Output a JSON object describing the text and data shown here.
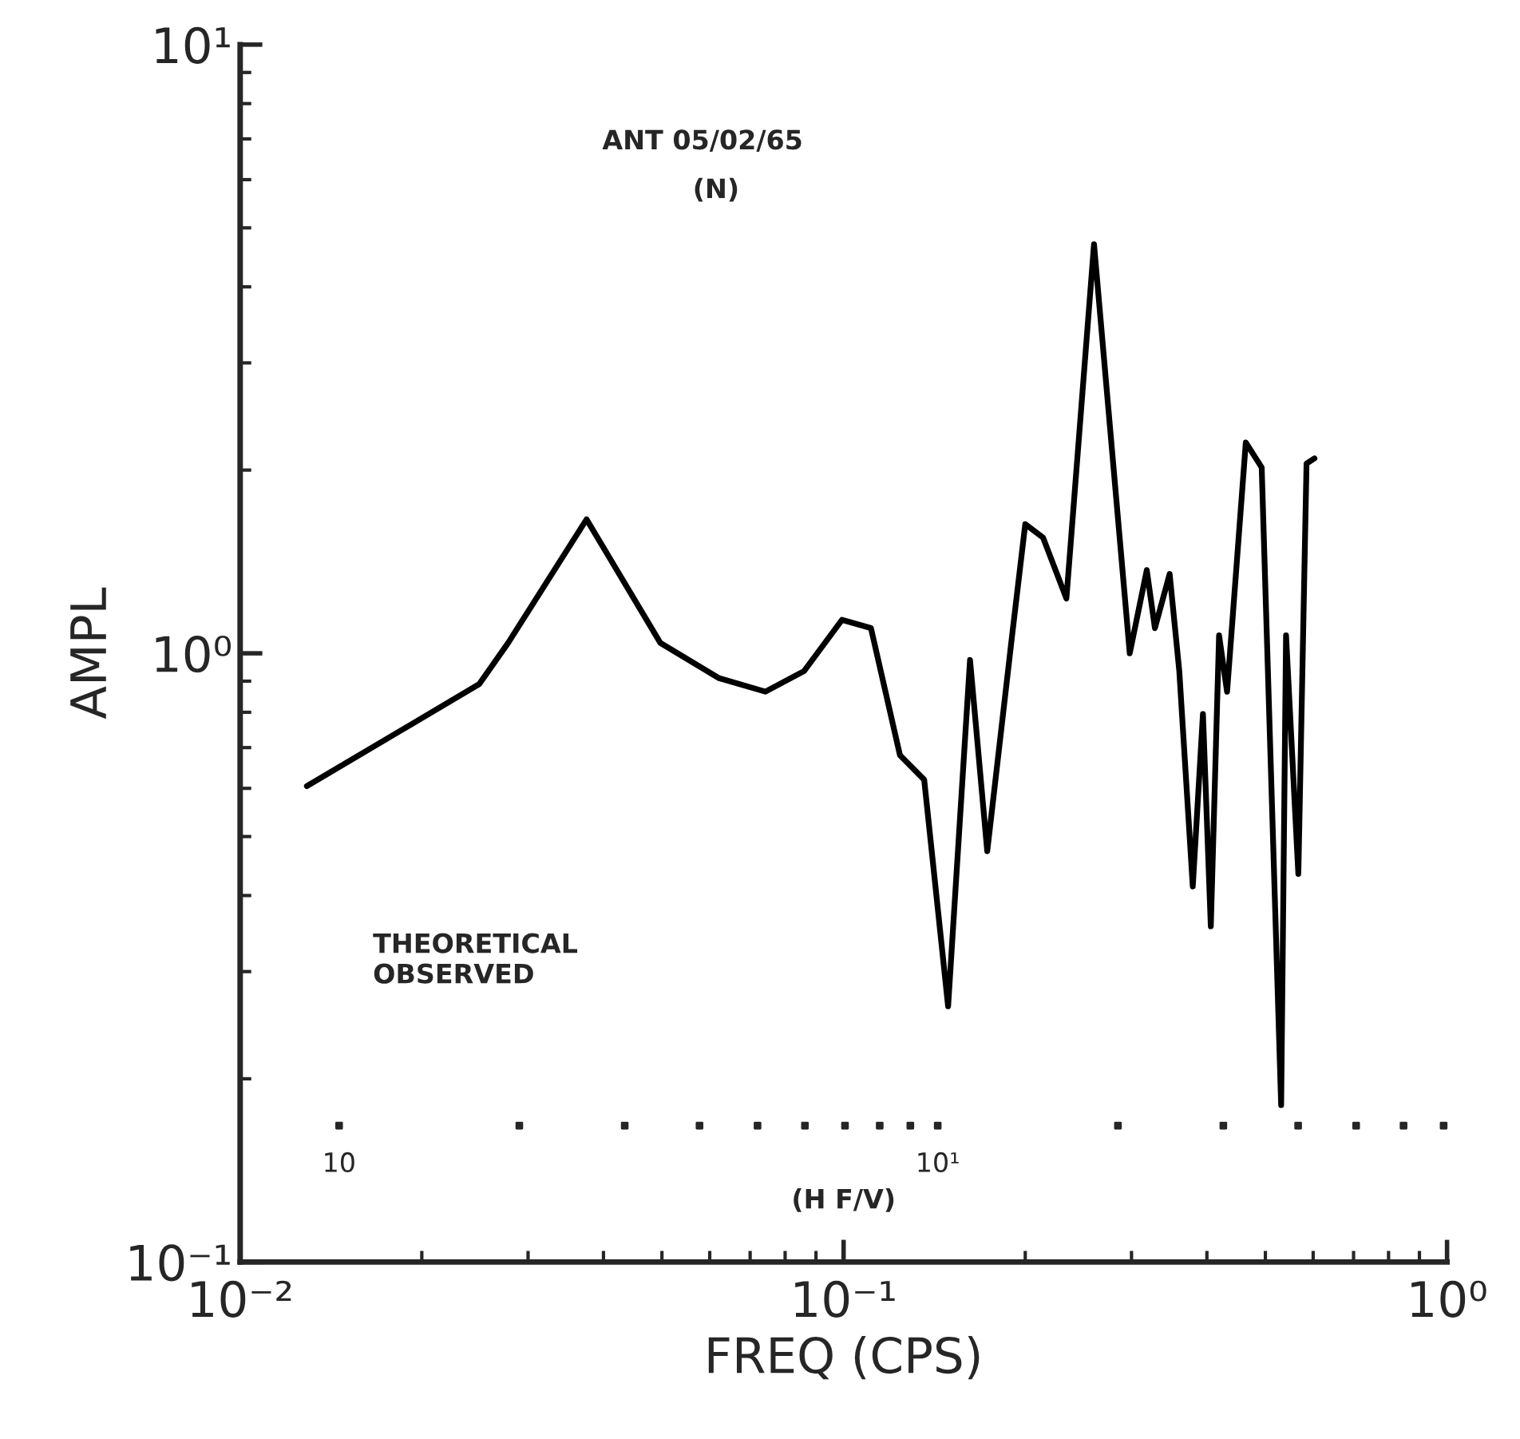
{
  "chart_data": {
    "type": "line",
    "xlabel": "FREQ (CPS)",
    "ylabel": "AMPL",
    "annotations": [
      "ANT 05/02/65",
      "(N)",
      "THEORETICAL",
      "OBSERVED",
      "10",
      "10¹",
      "(H F/V)"
    ],
    "log": "xy",
    "xlim": [
      0.01,
      1
    ],
    "xticks": [
      {
        "value": 0.01,
        "label": "10⁻²"
      },
      {
        "value": 0.1,
        "label": "10⁻¹"
      },
      {
        "value": 1,
        "label": "10⁰"
      }
    ],
    "ylim": [
      0.1,
      10
    ],
    "yticks": [
      {
        "value": 0.1,
        "label": "10⁻¹"
      },
      {
        "value": 1,
        "label": "10⁰"
      },
      {
        "value": 10,
        "label": "10¹"
      }
    ],
    "grid": false,
    "legend": false,
    "marker": "none",
    "line_style": "solid",
    "series": [
      {
        "color": "#000000",
        "x": [
          0.0129,
          0.0249,
          0.0278,
          0.0375,
          0.0497,
          0.0622,
          0.0742,
          0.086,
          0.0994,
          0.111,
          0.124,
          0.136,
          0.149,
          0.162,
          0.173,
          0.19,
          0.2,
          0.214,
          0.234,
          0.26,
          0.298,
          0.318,
          0.328,
          0.347,
          0.36,
          0.379,
          0.394,
          0.406,
          0.419,
          0.432,
          0.464,
          0.493,
          0.531,
          0.541,
          0.567,
          0.585,
          0.603
        ],
        "values": [
          0.605,
          0.89,
          1.04,
          1.66,
          1.04,
          0.91,
          0.865,
          0.935,
          1.135,
          1.1,
          0.68,
          0.62,
          0.263,
          0.975,
          0.473,
          1.06,
          1.63,
          1.55,
          1.23,
          4.7,
          1.0,
          1.37,
          1.1,
          1.35,
          0.935,
          0.414,
          0.795,
          0.356,
          1.07,
          0.865,
          2.22,
          2.02,
          0.181,
          1.07,
          0.434,
          2.05,
          2.09
        ]
      }
    ]
  }
}
